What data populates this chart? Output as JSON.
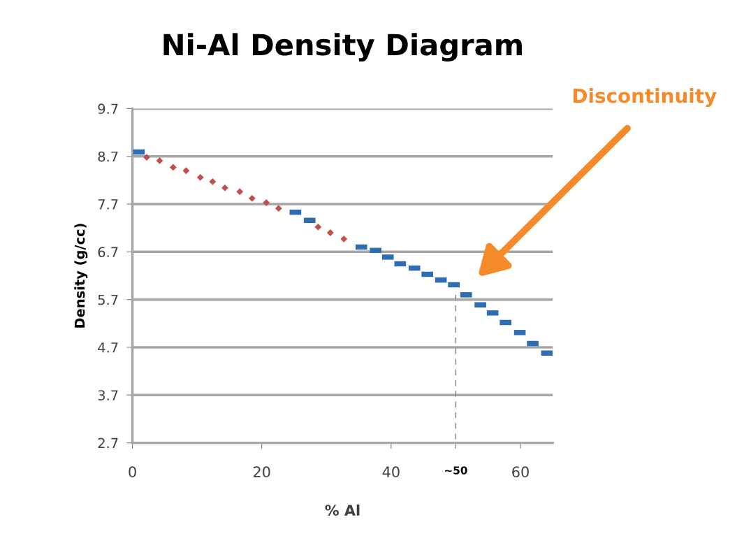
{
  "chart_data": {
    "type": "scatter",
    "title": "Ni-Al Density Diagram",
    "xlabel": "% Al",
    "ylabel": "Density (g/cc)",
    "series": [
      {
        "color": "#c0504d",
        "marker": "diamond",
        "x": [
          2.2,
          4.2,
          6.3,
          8.3,
          10.5,
          12.4,
          14.3,
          16.6,
          18.5,
          20.7,
          22.6,
          28.7,
          30.6,
          32.7
        ],
        "values": [
          8.68,
          8.61,
          8.47,
          8.4,
          8.26,
          8.17,
          8.04,
          7.96,
          7.82,
          7.73,
          7.61,
          7.22,
          7.1,
          6.97
        ]
      },
      {
        "color": "#2e6db4",
        "marker": "square",
        "x": [
          1.0,
          25.2,
          27.4,
          35.4,
          37.6,
          39.5,
          41.4,
          43.6,
          45.6,
          47.7,
          49.7,
          51.6,
          53.8,
          55.7,
          57.7,
          59.9,
          61.9,
          64.1
        ],
        "values": [
          8.79,
          7.53,
          7.36,
          6.8,
          6.73,
          6.59,
          6.45,
          6.36,
          6.23,
          6.11,
          6.01,
          5.8,
          5.59,
          5.42,
          5.22,
          5.01,
          4.78,
          4.58
        ]
      },
      {
        "type": "line",
        "color": "#808080",
        "line_style": "dashed",
        "marker": "none",
        "x": [
          50,
          50
        ],
        "values": [
          5.8,
          2.7
        ]
      }
    ],
    "xlim": [
      0,
      65
    ],
    "xticks": [
      0,
      20,
      40,
      {
        "value": 50,
        "label": "~50"
      },
      60
    ],
    "ylim": [
      2.7,
      9.7
    ],
    "yticks": [
      2.7,
      3.7,
      4.7,
      5.7,
      6.7,
      7.7,
      8.7,
      9.7
    ],
    "grid": "y",
    "annotations": [
      "Discontinuity"
    ]
  }
}
